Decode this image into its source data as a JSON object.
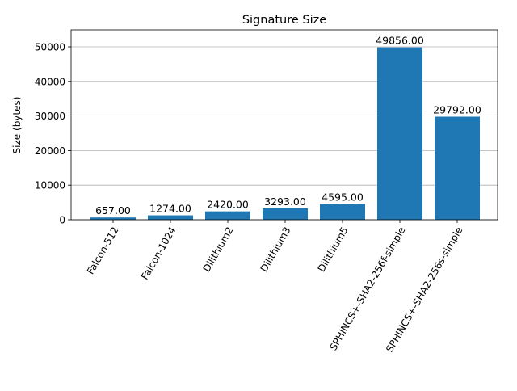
{
  "chart_data": {
    "type": "bar",
    "title": "Signature Size",
    "xlabel": "",
    "ylabel": "Size (bytes)",
    "categories": [
      "Falcon-512",
      "Falcon-1024",
      "Dilithium2",
      "Dilithium3",
      "Dilithium5",
      "SPHINCS+-SHA2-256f-simple",
      "SPHINCS+-SHA2-256s-simple"
    ],
    "values": [
      657,
      1274,
      2420,
      3293,
      4595,
      49856,
      29792
    ],
    "value_labels": [
      "657.00",
      "1274.00",
      "2420.00",
      "3293.00",
      "4595.00",
      "49856.00",
      "29792.00"
    ],
    "ylim": [
      0,
      54906
    ],
    "yticks": [
      0,
      10000,
      20000,
      30000,
      40000,
      50000
    ],
    "ytick_labels": [
      "0",
      "10000",
      "20000",
      "30000",
      "40000",
      "50000"
    ],
    "grid": "y-major",
    "bar_color": "#1f77b4",
    "grid_color": "#b0b0b0"
  }
}
